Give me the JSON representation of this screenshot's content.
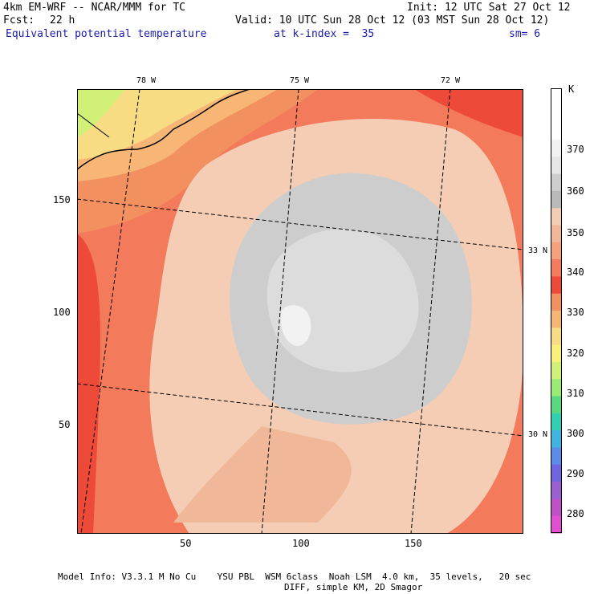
{
  "header": {
    "model": "4km EM-WRF -- NCAR/MMM for TC",
    "init": "Init: 12 UTC Sat 27 Oct 12",
    "fcst_label": "Fcst:",
    "fcst_value": "22 h",
    "valid": "Valid: 10 UTC Sun 28 Oct 12 (03 MST Sun 28 Oct 12)",
    "field": "Equivalent potential temperature",
    "level": "at k-index =  35",
    "smooth": "sm= 6"
  },
  "map": {
    "lon_labels": [
      "78 W",
      "75 W",
      "72 W"
    ],
    "lat_labels": [
      "33 N",
      "30 N"
    ],
    "x_ticks": [
      "50",
      "100",
      "150"
    ],
    "y_ticks": [
      "150",
      "100",
      "50"
    ]
  },
  "colorbar": {
    "unit": "K",
    "labels": [
      "370",
      "360",
      "350",
      "340",
      "330",
      "320",
      "310",
      "300",
      "290",
      "280"
    ],
    "colors": [
      "#ffffff",
      "#ffffff",
      "#ffffff",
      "#f2f2f2",
      "#e6e6e6",
      "#cdcdcd",
      "#b9b9b9",
      "#f4cdb4",
      "#f0b898",
      "#f7a07c",
      "#f47a5c",
      "#ee4a3a",
      "#f39060",
      "#f8b676",
      "#f8dc84",
      "#f8f07a",
      "#d0f078",
      "#98ec74",
      "#5ad880",
      "#30d0b0",
      "#40b4e0",
      "#5a8ce8",
      "#7064e0",
      "#9a60d0",
      "#c050c8",
      "#e050d0"
    ]
  },
  "footer": {
    "line1": "Model Info: V3.3.1 M No Cu    YSU PBL  WSM 6class  Noah LSM  4.0 km,  35 levels,   20 sec",
    "line2": "DIFF, simple KM, 2D Smagor"
  }
}
